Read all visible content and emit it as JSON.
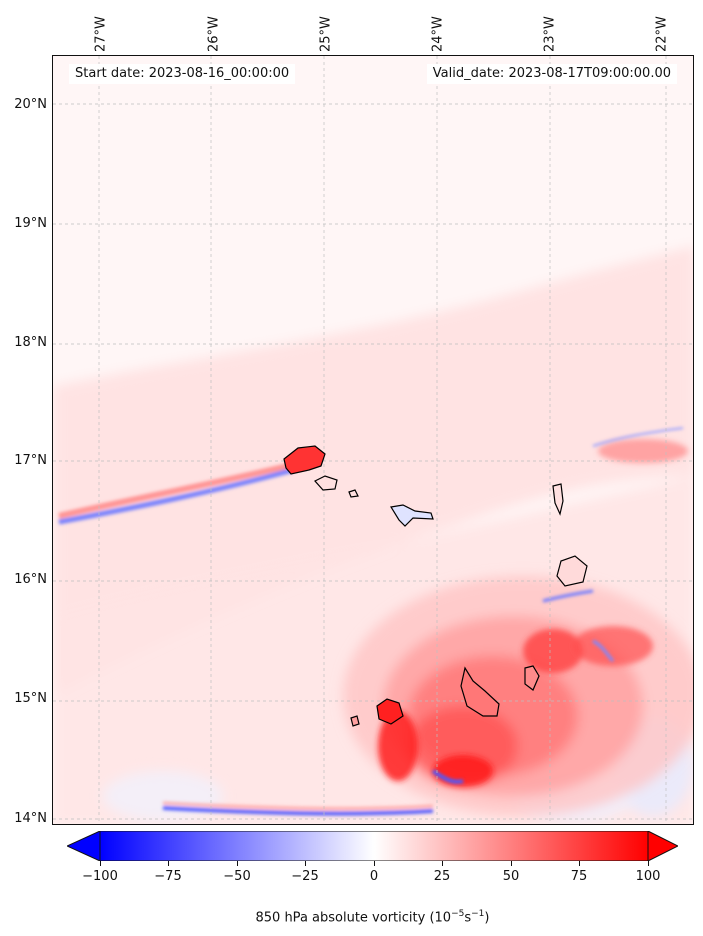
{
  "header": {
    "start_date": "Start date: 2023-08-16_00:00:00",
    "valid_date": "Valid_date: 2023-08-17T09:00:00.00"
  },
  "map": {
    "lon_labels": [
      "27°W",
      "26°W",
      "25°W",
      "24°W",
      "23°W",
      "22°W"
    ],
    "lat_labels": [
      "20°N",
      "19°N",
      "18°N",
      "17°N",
      "16°N",
      "15°N",
      "14°N"
    ],
    "gridlines": true,
    "islands": [
      "Santo Antão",
      "São Vicente",
      "Santa Luzia",
      "São Nicolau",
      "Sal",
      "Boa Vista",
      "Santiago",
      "Maio",
      "Fogo",
      "Brava"
    ]
  },
  "colorbar": {
    "ticks": [
      "−100",
      "−75",
      "−50",
      "−25",
      "0",
      "25",
      "50",
      "75",
      "100"
    ],
    "min": -100,
    "max": 100,
    "label_text": "850 hPa absolute vorticity (10",
    "label_exp1": "−5",
    "label_mid": "s",
    "label_exp2": "−1",
    "label_end": ")",
    "colors": {
      "negative": "#0000ff",
      "zero": "#ffffff",
      "positive": "#ff0000"
    }
  }
}
